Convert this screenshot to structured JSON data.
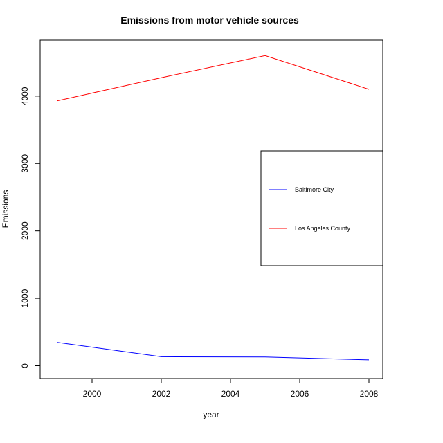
{
  "chart_data": {
    "type": "line",
    "title": "Emissions from motor vehicle sources",
    "xlabel": "year",
    "ylabel": "Emissions",
    "x": [
      1999,
      2002,
      2005,
      2008
    ],
    "xlim": [
      1998.5,
      2008.4
    ],
    "ylim": [
      -190,
      4830
    ],
    "xticks": [
      2000,
      2002,
      2004,
      2006,
      2008
    ],
    "yticks": [
      0,
      1000,
      2000,
      3000,
      4000
    ],
    "grid": false,
    "legend_position": "right",
    "series": [
      {
        "name": "Baltimore City",
        "color": "#0000ff",
        "values": [
          346.82,
          134.31,
          130.43,
          88.28
        ]
      },
      {
        "name": "Los Angeles County",
        "color": "#ff0000",
        "values": [
          3931.12,
          4274.03,
          4601.41,
          4101.32
        ]
      }
    ]
  }
}
